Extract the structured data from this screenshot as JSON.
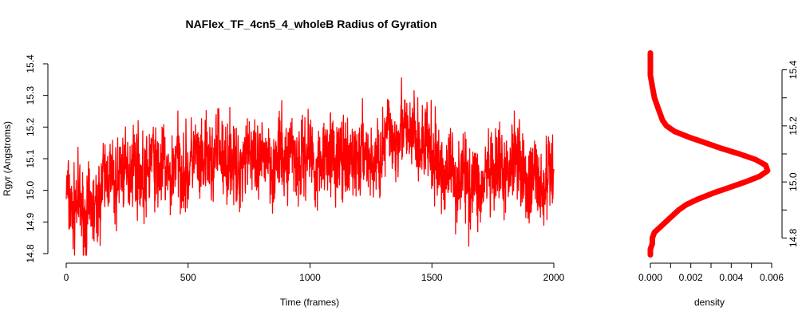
{
  "chart_data": [
    {
      "type": "line",
      "title": "NAFlex_TF_4cn5_4_wholeB Radius of Gyration",
      "xlabel": "Time (frames)",
      "ylabel": "Rgyr (Angstroms)",
      "xlim": [
        0,
        2000
      ],
      "ylim": [
        14.8,
        15.4
      ],
      "x_ticks": [
        "0",
        "500",
        "1000",
        "1500",
        "2000"
      ],
      "y_ticks": [
        "14.8",
        "14.9",
        "15.0",
        "15.1",
        "15.2",
        "15.3",
        "15.4"
      ],
      "grid": false,
      "series": [
        {
          "color": "#ff0000",
          "x": [
            0,
            25,
            50,
            75,
            100,
            125,
            150,
            175,
            200,
            225,
            250,
            275,
            300,
            325,
            350,
            375,
            400,
            425,
            450,
            475,
            500,
            525,
            550,
            575,
            600,
            625,
            650,
            675,
            700,
            725,
            750,
            775,
            800,
            825,
            850,
            875,
            900,
            925,
            950,
            975,
            1000,
            1025,
            1050,
            1075,
            1100,
            1125,
            1150,
            1175,
            1200,
            1225,
            1250,
            1275,
            1300,
            1325,
            1350,
            1375,
            1400,
            1425,
            1450,
            1475,
            1500,
            1525,
            1550,
            1575,
            1600,
            1625,
            1650,
            1675,
            1700,
            1725,
            1750,
            1775,
            1800,
            1825,
            1850,
            1875,
            1900,
            1925,
            1950,
            1975,
            2000
          ],
          "values": [
            15.01,
            14.92,
            14.98,
            14.9,
            14.95,
            14.93,
            15.03,
            15.06,
            15.0,
            15.08,
            15.04,
            15.1,
            15.06,
            15.02,
            15.12,
            15.05,
            15.09,
            15.02,
            15.11,
            15.07,
            15.05,
            15.13,
            15.06,
            15.1,
            15.08,
            15.15,
            15.07,
            15.12,
            15.04,
            15.1,
            15.16,
            15.05,
            15.09,
            15.13,
            15.06,
            15.12,
            15.08,
            15.15,
            15.07,
            15.11,
            15.14,
            15.06,
            15.1,
            15.16,
            15.08,
            15.12,
            15.05,
            15.11,
            15.09,
            15.14,
            15.07,
            15.1,
            15.13,
            15.2,
            15.15,
            15.22,
            15.16,
            15.18,
            15.12,
            15.17,
            15.1,
            15.08,
            15.04,
            15.09,
            15.02,
            15.07,
            15.0,
            15.05,
            14.98,
            15.06,
            15.02,
            15.08,
            15.03,
            15.1,
            15.14,
            15.05,
            15.0,
            15.07,
            14.98,
            15.04,
            15.06
          ]
        }
      ]
    },
    {
      "type": "line",
      "xlabel": "density",
      "xlim": [
        0,
        0.006
      ],
      "ylim": [
        14.75,
        15.45
      ],
      "x_ticks": [
        "0.000",
        "0.002",
        "0.004",
        "0.006"
      ],
      "y_ticks": [
        "14.8",
        "15.0",
        "15.2",
        "15.4"
      ],
      "grid": false,
      "series": [
        {
          "color": "#ff0000",
          "y": [
            14.74,
            14.76,
            14.78,
            14.8,
            14.82,
            14.84,
            14.86,
            14.88,
            14.9,
            14.92,
            14.94,
            14.96,
            14.98,
            15.0,
            15.02,
            15.04,
            15.06,
            15.08,
            15.1,
            15.12,
            15.14,
            15.16,
            15.18,
            15.2,
            15.22,
            15.24,
            15.26,
            15.28,
            15.3,
            15.32,
            15.34,
            15.36,
            15.38,
            15.4,
            15.42,
            15.44,
            15.46
          ],
          "density": [
            0.0,
            0.0,
            0.0001,
            0.0001,
            0.0002,
            0.0005,
            0.0008,
            0.0011,
            0.0014,
            0.0018,
            0.0024,
            0.0031,
            0.0039,
            0.0047,
            0.0054,
            0.0058,
            0.0057,
            0.0052,
            0.0044,
            0.0035,
            0.0027,
            0.0019,
            0.0012,
            0.0008,
            0.0006,
            0.0005,
            0.0004,
            0.0003,
            0.0002,
            0.00015,
            0.0001,
            5e-05,
            0.0,
            0.0,
            0.0,
            0.0,
            0.0
          ]
        }
      ]
    }
  ]
}
